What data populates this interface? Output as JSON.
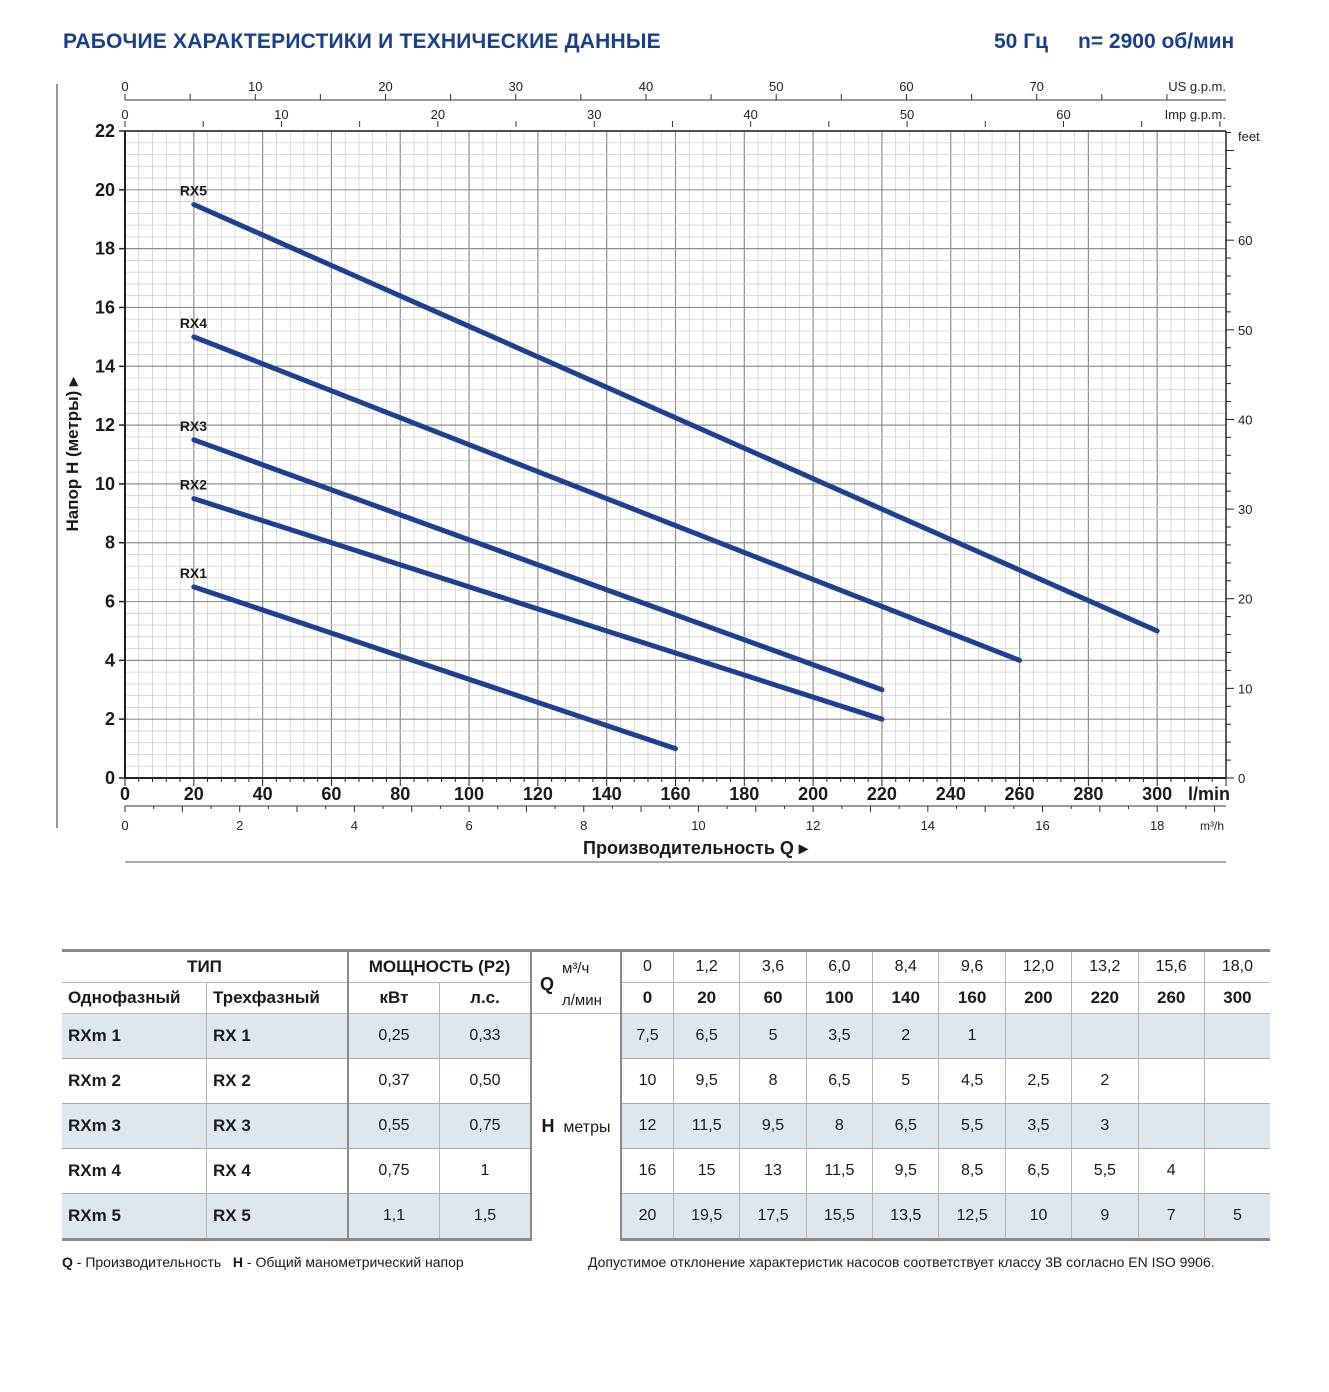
{
  "header": {
    "title": "РАБОЧИЕ ХАРАКТЕРИСТИКИ И ТЕХНИЧЕСКИЕ ДАННЫЕ",
    "freq": "50 Гц",
    "speed": "n= 2900 об/мин"
  },
  "chart_data": {
    "type": "line",
    "y_label": "Напор H (метры)",
    "x_label": "Производительность Q",
    "ylim": [
      0,
      22
    ],
    "xlim": [
      0,
      320
    ],
    "y_ticks": [
      0,
      2,
      4,
      6,
      8,
      10,
      12,
      14,
      16,
      18,
      20,
      22
    ],
    "x_ticks_lmin": [
      0,
      20,
      40,
      60,
      80,
      100,
      120,
      140,
      160,
      180,
      200,
      220,
      240,
      260,
      280,
      300
    ],
    "x_unit_lmin": "l/min",
    "x_ticks_m3h": [
      0,
      2,
      4,
      6,
      8,
      10,
      12,
      14,
      16,
      18
    ],
    "x_unit_m3h": "m³/h",
    "us_gpm_ticks": [
      0,
      10,
      20,
      30,
      40,
      50,
      60,
      70
    ],
    "us_gpm_unit": "US g.p.m.",
    "imp_gpm_ticks": [
      0,
      10,
      20,
      30,
      40,
      50,
      60
    ],
    "imp_gpm_unit": "Imp g.p.m.",
    "feet_ticks": [
      0,
      10,
      20,
      30,
      40,
      50,
      60
    ],
    "feet_unit": "feet",
    "series": [
      {
        "name": "RX1",
        "x": [
          20,
          160
        ],
        "y": [
          6.5,
          1
        ]
      },
      {
        "name": "RX2",
        "x": [
          20,
          220
        ],
        "y": [
          9.5,
          2
        ]
      },
      {
        "name": "RX3",
        "x": [
          20,
          220
        ],
        "y": [
          11.5,
          3
        ]
      },
      {
        "name": "RX4",
        "x": [
          20,
          260
        ],
        "y": [
          15,
          4
        ]
      },
      {
        "name": "RX5",
        "x": [
          20,
          300
        ],
        "y": [
          19.5,
          5
        ]
      }
    ],
    "line_color": "#1f3f8f"
  },
  "table": {
    "type_header": "ТИП",
    "single_phase": "Однофазный",
    "three_phase": "Трехфазный",
    "power_header": "МОЩНОСТЬ (P2)",
    "kw": "кВт",
    "hp": "л.с.",
    "q_label": "Q",
    "m3h_unit": "м³/ч",
    "lmin_unit": "л/мин",
    "h_label": "H",
    "h_unit": "метры",
    "q_m3h": [
      "0",
      "1,2",
      "3,6",
      "6,0",
      "8,4",
      "9,6",
      "12,0",
      "13,2",
      "15,6",
      "18,0"
    ],
    "q_lmin": [
      "0",
      "20",
      "60",
      "100",
      "140",
      "160",
      "200",
      "220",
      "260",
      "300"
    ],
    "rows": [
      {
        "single": "RXm 1",
        "three": "RX 1",
        "kw": "0,25",
        "hp": "0,33",
        "h": [
          "7,5",
          "6,5",
          "5",
          "3,5",
          "2",
          "1",
          "",
          "",
          "",
          ""
        ]
      },
      {
        "single": "RXm 2",
        "three": "RX 2",
        "kw": "0,37",
        "hp": "0,50",
        "h": [
          "10",
          "9,5",
          "8",
          "6,5",
          "5",
          "4,5",
          "2,5",
          "2",
          "",
          ""
        ]
      },
      {
        "single": "RXm 3",
        "three": "RX 3",
        "kw": "0,55",
        "hp": "0,75",
        "h": [
          "12",
          "11,5",
          "9,5",
          "8",
          "6,5",
          "5,5",
          "3,5",
          "3",
          "",
          ""
        ]
      },
      {
        "single": "RXm 4",
        "three": "RX 4",
        "kw": "0,75",
        "hp": "1",
        "h": [
          "16",
          "15",
          "13",
          "11,5",
          "9,5",
          "8,5",
          "6,5",
          "5,5",
          "4",
          ""
        ]
      },
      {
        "single": "RXm 5",
        "three": "RX 5",
        "kw": "1,1",
        "hp": "1,5",
        "h": [
          "20",
          "19,5",
          "17,5",
          "15,5",
          "13,5",
          "12,5",
          "10",
          "9",
          "7",
          "5"
        ]
      }
    ]
  },
  "footer": {
    "q_abbr": "Q",
    "q_desc": " - Производительность",
    "h_abbr": "H",
    "h_desc": " - Общий манометрический напор",
    "tolerance": "Допустимое отклонение характеристик насосов соответствует классу 3B согласно EN ISO 9906."
  }
}
